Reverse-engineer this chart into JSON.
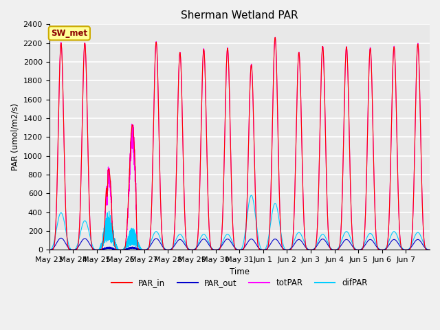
{
  "title": "Sherman Wetland PAR",
  "ylabel": "PAR (umol/m2/s)",
  "xlabel": "Time",
  "annotation": "SW_met",
  "ylim": [
    0,
    2400
  ],
  "n_days": 16,
  "background_color": "#e8e8e8",
  "plot_bg_color": "#e8e8e8",
  "fig_bg_color": "#f0f0f0",
  "grid_color": "white",
  "colors": {
    "PAR_in": "#ff0000",
    "PAR_out": "#0000cc",
    "totPAR": "#ff00ff",
    "difPAR": "#00ccff"
  },
  "x_tick_labels": [
    "May 23",
    "May 24",
    "May 25",
    "May 26",
    "May 27",
    "May 28",
    "May 29",
    "May 30",
    "May 31",
    "Jun 1",
    "Jun 2",
    "Jun 3",
    "Jun 4",
    "Jun 5",
    "Jun 6",
    "Jun 7"
  ],
  "par_in_peaks": [
    2200,
    2200,
    860,
    1330,
    2210,
    2100,
    2135,
    2145,
    1970,
    2260,
    2100,
    2165,
    2160,
    2145,
    2160,
    2190
  ],
  "difpar_peaks": [
    395,
    310,
    420,
    240,
    195,
    165,
    165,
    165,
    580,
    495,
    185,
    165,
    195,
    175,
    195,
    185
  ],
  "par_out_peaks": [
    125,
    120,
    40,
    40,
    120,
    110,
    115,
    115,
    115,
    115,
    110,
    115,
    110,
    110,
    110,
    110
  ]
}
